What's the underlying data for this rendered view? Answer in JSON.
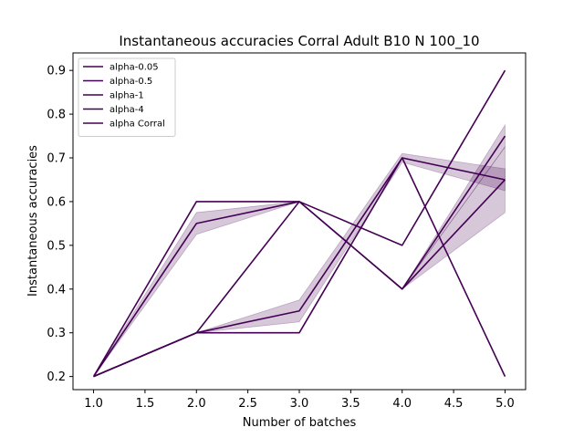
{
  "chart_data": {
    "type": "line",
    "title": "Instantaneous accuracies Corral Adult B10 N 100_10",
    "xlabel": "Number of batches",
    "ylabel": "Instantaneous accuracies",
    "xlim": [
      0.8,
      5.2
    ],
    "ylim": [
      0.17,
      0.94
    ],
    "xticks": [
      "1.0",
      "1.5",
      "2.0",
      "2.5",
      "3.0",
      "3.5",
      "4.0",
      "4.5",
      "5.0"
    ],
    "yticks": [
      "0.2",
      "0.3",
      "0.4",
      "0.5",
      "0.6",
      "0.7",
      "0.8",
      "0.9"
    ],
    "grid": false,
    "legend_position": "top-left",
    "line_color": "#440154",
    "band_color": "#440154",
    "x": [
      1,
      2,
      3,
      4,
      5
    ],
    "series": [
      {
        "name": "alpha-0.05",
        "values": [
          0.2,
          0.6,
          0.6,
          0.4,
          0.65
        ],
        "lower": [
          0.2,
          0.6,
          0.6,
          0.4,
          0.575
        ],
        "upper": [
          0.2,
          0.6,
          0.6,
          0.4,
          0.725
        ]
      },
      {
        "name": "alpha-0.5",
        "values": [
          0.2,
          0.55,
          0.6,
          0.4,
          0.75
        ],
        "lower": [
          0.2,
          0.525,
          0.6,
          0.4,
          0.725
        ],
        "upper": [
          0.2,
          0.575,
          0.6,
          0.4,
          0.775
        ]
      },
      {
        "name": "alpha-1",
        "values": [
          0.2,
          0.3,
          0.35,
          0.7,
          0.65
        ],
        "lower": [
          0.2,
          0.3,
          0.325,
          0.69,
          0.625
        ],
        "upper": [
          0.2,
          0.3,
          0.375,
          0.71,
          0.675
        ]
      },
      {
        "name": "alpha-4",
        "values": [
          0.2,
          0.3,
          0.3,
          0.7,
          0.2
        ],
        "lower": [
          0.2,
          0.3,
          0.3,
          0.7,
          0.2
        ],
        "upper": [
          0.2,
          0.3,
          0.3,
          0.7,
          0.2
        ]
      },
      {
        "name": "alpha Corral",
        "values": [
          0.2,
          0.3,
          0.6,
          0.5,
          0.9
        ],
        "lower": [
          0.2,
          0.3,
          0.6,
          0.5,
          0.9
        ],
        "upper": [
          0.2,
          0.3,
          0.6,
          0.5,
          0.9
        ]
      }
    ]
  }
}
